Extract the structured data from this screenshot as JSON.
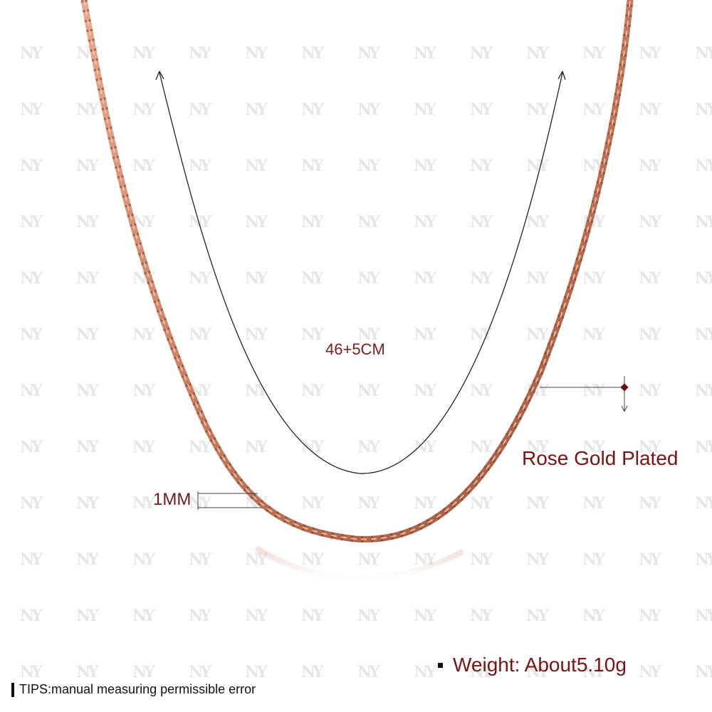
{
  "product": {
    "length_label": "46+5CM",
    "width_label": "1MM",
    "plating_label": "Rose Gold Plated",
    "weight_label": "Weight: About5.10g",
    "tips_label": "TIPS:manual measuring permissible error"
  },
  "watermark": {
    "text": "NY"
  },
  "colors": {
    "chain": "#c77b5c",
    "chain_dark": "#8c4a33",
    "chain_highlight": "#f3c9b2",
    "label_red": "#7a1414",
    "dimension_line": "#222222"
  }
}
